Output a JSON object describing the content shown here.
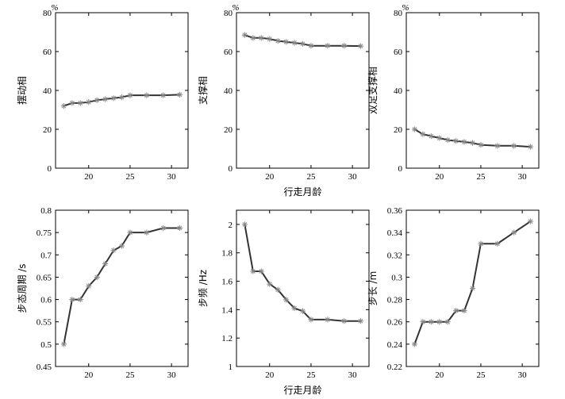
{
  "chart_data": [
    {
      "type": "line",
      "ylabel": "摆动相",
      "unit": "%",
      "xlabel": "",
      "xlim": [
        16,
        32
      ],
      "ylim": [
        0,
        80
      ],
      "xticks": [
        "20",
        "25",
        "30"
      ],
      "yticks": [
        "0",
        "20",
        "40",
        "60",
        "80"
      ],
      "x": [
        17,
        18,
        19,
        20,
        21,
        22,
        23,
        24,
        25,
        27,
        29,
        31
      ],
      "series": [
        {
          "values": [
            32,
            33.5,
            33.5,
            34,
            35,
            35.5,
            36,
            36.5,
            37.5,
            37.5,
            37.5,
            37.8
          ]
        }
      ],
      "color": "#333333",
      "marker_color": "#888888"
    },
    {
      "type": "line",
      "ylabel": "支撑相",
      "unit": "%",
      "xlabel": "行走月龄",
      "xlim": [
        16,
        32
      ],
      "ylim": [
        0,
        80
      ],
      "xticks": [
        "20",
        "25",
        "30"
      ],
      "yticks": [
        "0",
        "20",
        "40",
        "60",
        "80"
      ],
      "x": [
        17,
        18,
        19,
        20,
        21,
        22,
        23,
        24,
        25,
        27,
        29,
        31
      ],
      "series": [
        {
          "values": [
            68.5,
            67,
            67,
            66.5,
            65.5,
            65,
            64.5,
            64,
            63,
            63,
            63,
            62.8
          ]
        }
      ],
      "color": "#333333",
      "marker_color": "#888888"
    },
    {
      "type": "line",
      "ylabel": "双足支撑相",
      "unit": "%",
      "xlabel": "",
      "xlim": [
        16,
        32
      ],
      "ylim": [
        0,
        80
      ],
      "xticks": [
        "20",
        "25",
        "30"
      ],
      "yticks": [
        "0",
        "20",
        "40",
        "60",
        "80"
      ],
      "x": [
        17,
        18,
        19,
        20,
        21,
        22,
        23,
        24,
        25,
        27,
        29,
        31
      ],
      "series": [
        {
          "values": [
            20,
            17.5,
            16.5,
            15.5,
            14.5,
            14,
            13.5,
            13,
            12,
            11.5,
            11.5,
            11
          ]
        }
      ],
      "color": "#333333",
      "marker_color": "#888888"
    },
    {
      "type": "line",
      "ylabel": "步态周期 /s",
      "unit": "",
      "xlabel": "",
      "xlim": [
        16,
        32
      ],
      "ylim": [
        0.45,
        0.8
      ],
      "xticks": [
        "20",
        "25",
        "30"
      ],
      "yticks": [
        "0.45",
        "0.5",
        "0.55",
        "0.6",
        "0.65",
        "0.7",
        "0.75",
        "0.8"
      ],
      "x": [
        17,
        18,
        19,
        20,
        21,
        22,
        23,
        24,
        25,
        27,
        29,
        31
      ],
      "series": [
        {
          "values": [
            0.5,
            0.6,
            0.6,
            0.63,
            0.65,
            0.68,
            0.71,
            0.72,
            0.75,
            0.75,
            0.76,
            0.76
          ]
        }
      ],
      "color": "#333333",
      "marker_color": "#888888"
    },
    {
      "type": "line",
      "ylabel": "步频 /Hz",
      "unit": "",
      "xlabel": "行走月龄",
      "xlim": [
        16,
        32
      ],
      "ylim": [
        1.0,
        2.1
      ],
      "xticks": [
        "20",
        "25",
        "30"
      ],
      "yticks": [
        "1",
        "1.2",
        "1.4",
        "1.6",
        "1.8",
        "2"
      ],
      "x": [
        17,
        18,
        19,
        20,
        21,
        22,
        23,
        24,
        25,
        27,
        29,
        31
      ],
      "series": [
        {
          "values": [
            2.0,
            1.67,
            1.67,
            1.58,
            1.54,
            1.47,
            1.41,
            1.39,
            1.33,
            1.33,
            1.32,
            1.32
          ]
        }
      ],
      "color": "#333333",
      "marker_color": "#888888"
    },
    {
      "type": "line",
      "ylabel": "步长 /m",
      "unit": "",
      "xlabel": "",
      "xlim": [
        16,
        32
      ],
      "ylim": [
        0.22,
        0.36
      ],
      "xticks": [
        "20",
        "25",
        "30"
      ],
      "yticks": [
        "0.22",
        "0.24",
        "0.26",
        "0.28",
        "0.3",
        "0.32",
        "0.34",
        "0.36"
      ],
      "x": [
        17,
        18,
        19,
        20,
        21,
        22,
        23,
        24,
        25,
        27,
        29,
        31
      ],
      "series": [
        {
          "values": [
            0.24,
            0.26,
            0.26,
            0.26,
            0.26,
            0.27,
            0.27,
            0.29,
            0.33,
            0.33,
            0.34,
            0.35
          ]
        }
      ],
      "color": "#333333",
      "marker_color": "#888888"
    }
  ]
}
